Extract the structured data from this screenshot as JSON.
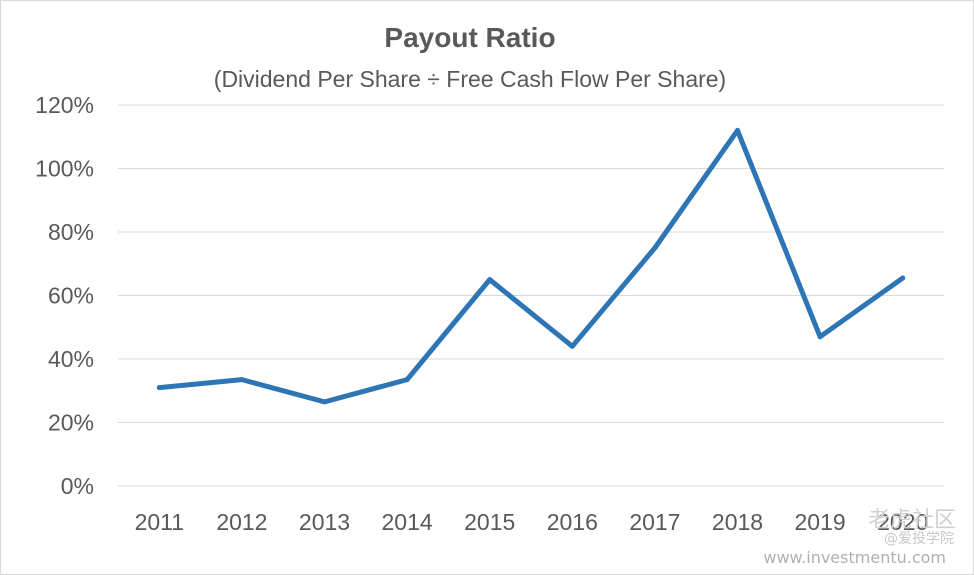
{
  "chart_data": {
    "type": "line",
    "title": "Payout Ratio",
    "subtitle": "(Dividend Per Share ÷ Free Cash Flow Per Share)",
    "categories": [
      "2011",
      "2012",
      "2013",
      "2014",
      "2015",
      "2016",
      "2017",
      "2018",
      "2019",
      "2020"
    ],
    "series": [
      {
        "values": [
          31,
          33.5,
          26.5,
          33.5,
          65,
          44,
          75,
          112,
          47,
          65.5
        ],
        "color": "#2e75b6"
      }
    ],
    "yticks": [
      "0%",
      "20%",
      "40%",
      "60%",
      "80%",
      "100%",
      "120%"
    ],
    "ylim": [
      0,
      120
    ],
    "grid": true,
    "legend": "none"
  },
  "watermarks": {
    "community": "老虎社区",
    "academy": "@爱投学院",
    "url": "www.investmentu.com"
  }
}
